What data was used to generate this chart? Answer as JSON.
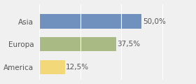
{
  "categories": [
    "Asia",
    "Europa",
    "America"
  ],
  "values": [
    50.0,
    37.5,
    12.5
  ],
  "bar_colors": [
    "#7090be",
    "#aaba84",
    "#f2d878"
  ],
  "labels": [
    "50,0%",
    "37,5%",
    "12,5%"
  ],
  "background_color": "#f0f0f0",
  "xlim": [
    0,
    65
  ],
  "bar_height": 0.62,
  "label_fontsize": 7.5,
  "tick_fontsize": 7.5,
  "figsize": [
    2.8,
    1.2
  ],
  "dpi": 100
}
